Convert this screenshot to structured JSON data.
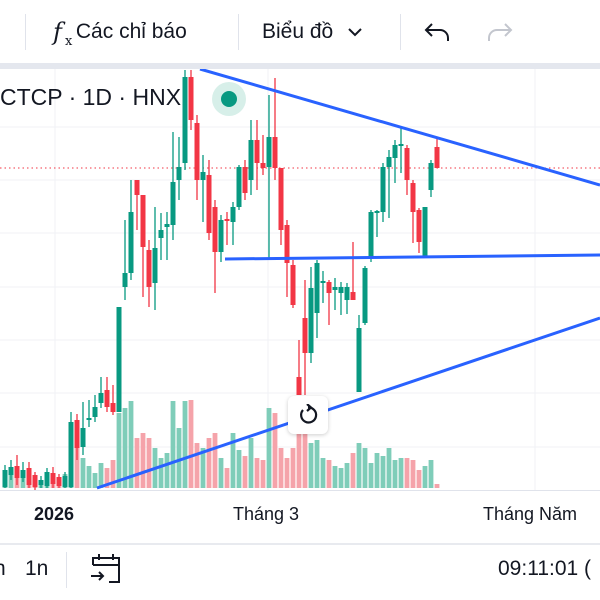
{
  "toolbar": {
    "indicators_icon": "fx-icon",
    "indicators_label": "Các chỉ báo",
    "chart_type_label": "Biểu đồ",
    "undo_icon": "undo-icon",
    "redo_icon": "redo-icon"
  },
  "legend": {
    "symbol_text": "CTCP · 1D · HNX",
    "market_status_color": "#089981"
  },
  "time_axis": {
    "labels": [
      "2026",
      "Tháng 3",
      "Tháng Năm"
    ]
  },
  "bottom_bar": {
    "range_partial": "n",
    "range_1n": "1n",
    "goto_date_icon": "calendar-arrow-icon",
    "clock": "09:11:01 ("
  },
  "colors": {
    "up": "#089981",
    "down": "#f23645",
    "trendline": "#2962ff",
    "last_price_line": "#f23645"
  },
  "chart_data": {
    "type": "candlestick",
    "interval": "1D",
    "exchange": "HNX",
    "last_price": 33.2,
    "grid": true,
    "candles": [
      [
        1.3,
        3.5,
        1.2,
        3.0
      ],
      [
        2.5,
        4.0,
        2.0,
        3.3
      ],
      [
        3.4,
        4.5,
        1.5,
        2.2
      ],
      [
        2.2,
        3.8,
        1.8,
        3.0
      ],
      [
        3.2,
        3.8,
        1.2,
        1.5
      ],
      [
        2.5,
        2.8,
        1.0,
        1.3
      ],
      [
        1.5,
        2.4,
        1.2,
        2.0
      ],
      [
        1.4,
        3.2,
        1.2,
        2.8
      ],
      [
        2.7,
        3.3,
        1.2,
        1.6
      ],
      [
        2.3,
        2.6,
        1.2,
        1.4
      ],
      [
        1.3,
        2.8,
        1.2,
        2.4
      ],
      [
        1.3,
        8.8,
        1.2,
        7.8
      ],
      [
        8.0,
        8.6,
        4.0,
        5.2
      ],
      [
        5.3,
        9.8,
        4.5,
        7.2
      ],
      [
        8.0,
        10.0,
        7.3,
        8.2
      ],
      [
        8.3,
        10.5,
        7.8,
        9.3
      ],
      [
        9.7,
        12.3,
        9.2,
        10.7
      ],
      [
        11.0,
        12.3,
        8.8,
        9.3
      ],
      [
        9.7,
        11.5,
        8.5,
        8.8
      ],
      [
        8.8,
        19.3,
        8.8,
        19.3
      ],
      [
        21.3,
        28.0,
        20.0,
        22.7
      ],
      [
        22.7,
        32.0,
        22.0,
        28.8
      ],
      [
        32.0,
        32.0,
        27.0,
        30.5
      ],
      [
        30.5,
        30.5,
        20.3,
        25.3
      ],
      [
        25.0,
        26.0,
        19.3,
        21.3
      ],
      [
        21.7,
        29.3,
        19.0,
        25.2
      ],
      [
        26.2,
        28.7,
        24.0,
        27.0
      ],
      [
        27.3,
        28.8,
        24.0,
        27.6
      ],
      [
        27.5,
        36.8,
        26.0,
        31.8
      ],
      [
        32.0,
        36.3,
        30.0,
        33.3
      ],
      [
        33.7,
        43.0,
        33.0,
        42.3
      ],
      [
        42.3,
        43.0,
        37.0,
        38.0
      ],
      [
        37.7,
        38.5,
        30.0,
        32.0
      ],
      [
        32.0,
        34.5,
        27.8,
        32.8
      ],
      [
        32.5,
        34.0,
        26.0,
        26.7
      ],
      [
        29.3,
        30.0,
        20.7,
        24.8
      ],
      [
        24.8,
        28.5,
        23.8,
        28.0
      ],
      [
        28.1,
        28.8,
        25.5,
        27.9
      ],
      [
        27.8,
        29.8,
        25.5,
        29.3
      ],
      [
        29.3,
        33.5,
        29.0,
        33.3
      ],
      [
        33.3,
        34.0,
        30.0,
        30.7
      ],
      [
        32.0,
        38.0,
        30.5,
        36.0
      ],
      [
        36.0,
        38.0,
        31.0,
        33.7
      ],
      [
        33.7,
        36.5,
        32.5,
        33.2
      ],
      [
        33.3,
        40.5,
        24.2,
        36.3
      ],
      [
        36.3,
        42.2,
        32.0,
        33.2
      ],
      [
        33.2,
        33.2,
        25.5,
        27.0
      ],
      [
        27.5,
        28.0,
        20.3,
        23.7
      ],
      [
        23.5,
        24.0,
        19.2,
        19.5
      ],
      [
        12.3,
        16.0,
        10.5,
        10.5
      ],
      [
        18.2,
        22.0,
        10.5,
        14.7
      ],
      [
        14.7,
        23.3,
        13.7,
        21.2
      ],
      [
        18.7,
        24.0,
        16.2,
        23.7
      ],
      [
        21.7,
        22.9,
        19.7,
        21.9
      ],
      [
        21.8,
        22.0,
        17.5,
        20.7
      ],
      [
        21.0,
        22.2,
        19.0,
        21.3
      ],
      [
        20.7,
        21.8,
        18.5,
        21.3
      ],
      [
        20.0,
        21.7,
        18.6,
        21.3
      ],
      [
        20.8,
        25.8,
        20.0,
        20.0
      ],
      [
        10.8,
        18.5,
        10.8,
        17.2
      ],
      [
        17.7,
        23.4,
        17.5,
        23.2
      ],
      [
        24.2,
        29.0,
        23.8,
        28.8
      ],
      [
        28.7,
        29.0,
        26.3,
        28.9
      ],
      [
        28.8,
        33.7,
        27.8,
        33.3
      ],
      [
        33.3,
        35.0,
        28.2,
        34.3
      ],
      [
        34.2,
        36.0,
        31.7,
        35.5
      ],
      [
        35.4,
        37.2,
        32.7,
        35.6
      ],
      [
        35.2,
        35.5,
        30.5,
        32.0
      ],
      [
        31.7,
        32.0,
        25.7,
        28.8
      ],
      [
        29.0,
        29.2,
        24.7,
        25.8
      ],
      [
        24.2,
        29.3,
        24.2,
        29.3
      ],
      [
        31.0,
        34.0,
        30.3,
        33.7
      ],
      [
        35.3,
        36.2,
        33.2,
        33.2
      ]
    ],
    "volume": [
      8,
      14,
      18,
      10,
      16,
      8,
      6,
      12,
      10,
      6,
      14,
      45,
      40,
      30,
      22,
      15,
      25,
      20,
      28,
      75,
      80,
      87,
      50,
      55,
      50,
      40,
      30,
      35,
      87,
      60,
      87,
      88,
      45,
      40,
      50,
      55,
      30,
      20,
      55,
      38,
      32,
      50,
      30,
      28,
      80,
      75,
      40,
      30,
      40,
      90,
      55,
      45,
      48,
      30,
      28,
      22,
      20,
      25,
      35,
      45,
      40,
      25,
      35,
      32,
      40,
      28,
      30,
      30,
      28,
      18,
      22,
      28,
      4
    ],
    "x_tick_labels": [
      "2026",
      "Tháng 3",
      "Tháng Năm"
    ]
  }
}
